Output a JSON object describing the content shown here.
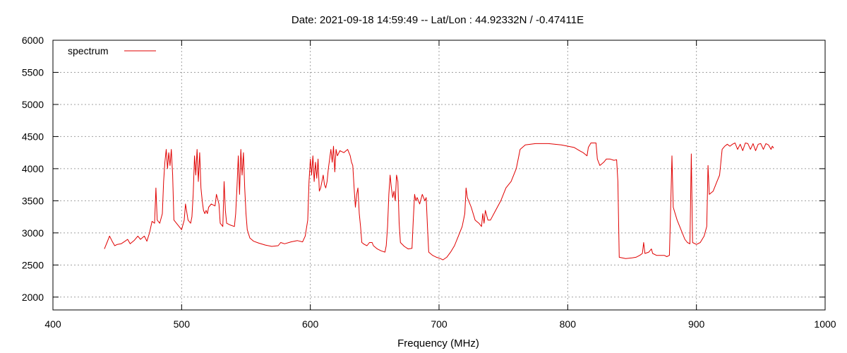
{
  "chart_data": {
    "type": "line",
    "title": "Date: 2021-09-18 14:59:49  --  Lat/Lon : 44.92332N / -0.47411E",
    "xlabel": "Frequency (MHz)",
    "ylabel": "",
    "xlim": [
      400,
      1000
    ],
    "ylim": [
      1800,
      6000
    ],
    "xticks": [
      400,
      500,
      600,
      700,
      800,
      900,
      1000
    ],
    "yticks": [
      2000,
      2500,
      3000,
      3500,
      4000,
      4500,
      5000,
      5500,
      6000
    ],
    "grid": true,
    "legend_position": "top-left",
    "series": [
      {
        "name": "spectrum",
        "color": "#e00000",
        "points": [
          [
            440,
            2750
          ],
          [
            442,
            2850
          ],
          [
            444,
            2950
          ],
          [
            446,
            2870
          ],
          [
            448,
            2800
          ],
          [
            450,
            2820
          ],
          [
            453,
            2830
          ],
          [
            456,
            2870
          ],
          [
            458,
            2900
          ],
          [
            460,
            2830
          ],
          [
            463,
            2880
          ],
          [
            466,
            2950
          ],
          [
            468,
            2900
          ],
          [
            471,
            2950
          ],
          [
            473,
            2870
          ],
          [
            475,
            3000
          ],
          [
            477,
            3180
          ],
          [
            479,
            3150
          ],
          [
            480,
            3700
          ],
          [
            481,
            3200
          ],
          [
            483,
            3150
          ],
          [
            485,
            3300
          ],
          [
            486,
            3800
          ],
          [
            487,
            4100
          ],
          [
            488,
            4300
          ],
          [
            489,
            4000
          ],
          [
            490,
            4250
          ],
          [
            491,
            4050
          ],
          [
            492,
            4300
          ],
          [
            493,
            3900
          ],
          [
            494,
            3200
          ],
          [
            496,
            3150
          ],
          [
            498,
            3100
          ],
          [
            500,
            3050
          ],
          [
            502,
            3200
          ],
          [
            503,
            3450
          ],
          [
            505,
            3200
          ],
          [
            507,
            3150
          ],
          [
            508,
            3250
          ],
          [
            509,
            3600
          ],
          [
            510,
            4200
          ],
          [
            511,
            3900
          ],
          [
            512,
            4300
          ],
          [
            513,
            3800
          ],
          [
            514,
            4250
          ],
          [
            515,
            3700
          ],
          [
            516,
            3500
          ],
          [
            517,
            3350
          ],
          [
            518,
            3300
          ],
          [
            519,
            3350
          ],
          [
            520,
            3300
          ],
          [
            521,
            3400
          ],
          [
            523,
            3450
          ],
          [
            526,
            3420
          ],
          [
            527,
            3600
          ],
          [
            529,
            3450
          ],
          [
            530,
            3150
          ],
          [
            532,
            3100
          ],
          [
            533,
            3800
          ],
          [
            534,
            3350
          ],
          [
            535,
            3150
          ],
          [
            538,
            3120
          ],
          [
            541,
            3100
          ],
          [
            542,
            3300
          ],
          [
            543,
            3700
          ],
          [
            544,
            4200
          ],
          [
            545,
            3600
          ],
          [
            546,
            4300
          ],
          [
            547,
            3900
          ],
          [
            548,
            4250
          ],
          [
            549,
            3700
          ],
          [
            550,
            3300
          ],
          [
            551,
            3050
          ],
          [
            553,
            2920
          ],
          [
            556,
            2870
          ],
          [
            560,
            2840
          ],
          [
            565,
            2810
          ],
          [
            570,
            2790
          ],
          [
            575,
            2800
          ],
          [
            577,
            2850
          ],
          [
            580,
            2830
          ],
          [
            585,
            2860
          ],
          [
            590,
            2880
          ],
          [
            594,
            2860
          ],
          [
            596,
            2950
          ],
          [
            598,
            3200
          ],
          [
            599,
            3800
          ],
          [
            600,
            4150
          ],
          [
            601,
            3900
          ],
          [
            602,
            4200
          ],
          [
            603,
            3800
          ],
          [
            604,
            4100
          ],
          [
            605,
            3850
          ],
          [
            606,
            4150
          ],
          [
            607,
            3650
          ],
          [
            608,
            3700
          ],
          [
            610,
            3900
          ],
          [
            611,
            3750
          ],
          [
            612,
            3700
          ],
          [
            613,
            3800
          ],
          [
            614,
            4000
          ],
          [
            615,
            4150
          ],
          [
            616,
            4300
          ],
          [
            617,
            4100
          ],
          [
            618,
            4350
          ],
          [
            619,
            3950
          ],
          [
            620,
            4300
          ],
          [
            621,
            4200
          ],
          [
            623,
            4280
          ],
          [
            626,
            4250
          ],
          [
            629,
            4300
          ],
          [
            631,
            4200
          ],
          [
            632,
            4100
          ],
          [
            633,
            4050
          ],
          [
            634,
            3700
          ],
          [
            635,
            3400
          ],
          [
            636,
            3600
          ],
          [
            637,
            3700
          ],
          [
            638,
            3300
          ],
          [
            639,
            3100
          ],
          [
            640,
            2850
          ],
          [
            642,
            2820
          ],
          [
            644,
            2800
          ],
          [
            646,
            2850
          ],
          [
            648,
            2850
          ],
          [
            649,
            2800
          ],
          [
            652,
            2750
          ],
          [
            655,
            2720
          ],
          [
            658,
            2700
          ],
          [
            659,
            2800
          ],
          [
            660,
            3100
          ],
          [
            661,
            3600
          ],
          [
            662,
            3900
          ],
          [
            663,
            3700
          ],
          [
            664,
            3550
          ],
          [
            665,
            3650
          ],
          [
            666,
            3500
          ],
          [
            667,
            3900
          ],
          [
            668,
            3800
          ],
          [
            669,
            3150
          ],
          [
            670,
            2850
          ],
          [
            673,
            2790
          ],
          [
            676,
            2750
          ],
          [
            679,
            2760
          ],
          [
            680,
            3200
          ],
          [
            681,
            3600
          ],
          [
            682,
            3500
          ],
          [
            683,
            3550
          ],
          [
            685,
            3450
          ],
          [
            687,
            3600
          ],
          [
            689,
            3500
          ],
          [
            690,
            3550
          ],
          [
            691,
            3100
          ],
          [
            692,
            2700
          ],
          [
            695,
            2650
          ],
          [
            698,
            2620
          ],
          [
            701,
            2600
          ],
          [
            703,
            2580
          ],
          [
            706,
            2620
          ],
          [
            709,
            2700
          ],
          [
            712,
            2800
          ],
          [
            715,
            2950
          ],
          [
            718,
            3100
          ],
          [
            720,
            3300
          ],
          [
            721,
            3700
          ],
          [
            722,
            3550
          ],
          [
            725,
            3400
          ],
          [
            728,
            3200
          ],
          [
            731,
            3150
          ],
          [
            733,
            3100
          ],
          [
            734,
            3300
          ],
          [
            735,
            3150
          ],
          [
            736,
            3350
          ],
          [
            738,
            3200
          ],
          [
            740,
            3200
          ],
          [
            744,
            3350
          ],
          [
            748,
            3500
          ],
          [
            752,
            3700
          ],
          [
            756,
            3800
          ],
          [
            760,
            4000
          ],
          [
            763,
            4300
          ],
          [
            767,
            4370
          ],
          [
            775,
            4390
          ],
          [
            785,
            4390
          ],
          [
            795,
            4370
          ],
          [
            805,
            4330
          ],
          [
            810,
            4270
          ],
          [
            812,
            4250
          ],
          [
            815,
            4200
          ],
          [
            816,
            4330
          ],
          [
            818,
            4400
          ],
          [
            822,
            4400
          ],
          [
            823,
            4150
          ],
          [
            825,
            4050
          ],
          [
            828,
            4100
          ],
          [
            830,
            4150
          ],
          [
            833,
            4150
          ],
          [
            836,
            4130
          ],
          [
            838,
            4140
          ],
          [
            839,
            3800
          ],
          [
            840,
            2620
          ],
          [
            845,
            2600
          ],
          [
            850,
            2610
          ],
          [
            853,
            2620
          ],
          [
            856,
            2650
          ],
          [
            858,
            2680
          ],
          [
            859,
            2850
          ],
          [
            860,
            2680
          ],
          [
            863,
            2700
          ],
          [
            865,
            2750
          ],
          [
            866,
            2680
          ],
          [
            869,
            2650
          ],
          [
            872,
            2650
          ],
          [
            875,
            2650
          ],
          [
            877,
            2630
          ],
          [
            879,
            2650
          ],
          [
            880,
            3400
          ],
          [
            881,
            4200
          ],
          [
            882,
            3400
          ],
          [
            885,
            3200
          ],
          [
            888,
            3050
          ],
          [
            891,
            2900
          ],
          [
            893,
            2850
          ],
          [
            895,
            2830
          ],
          [
            896,
            4230
          ],
          [
            897,
            2850
          ],
          [
            900,
            2820
          ],
          [
            903,
            2850
          ],
          [
            906,
            2950
          ],
          [
            908,
            3100
          ],
          [
            909,
            4050
          ],
          [
            910,
            3600
          ],
          [
            913,
            3650
          ],
          [
            916,
            3800
          ],
          [
            918,
            3900
          ],
          [
            919,
            4100
          ],
          [
            920,
            4300
          ],
          [
            922,
            4350
          ],
          [
            924,
            4380
          ],
          [
            926,
            4350
          ],
          [
            928,
            4380
          ],
          [
            930,
            4400
          ],
          [
            932,
            4300
          ],
          [
            934,
            4380
          ],
          [
            936,
            4280
          ],
          [
            938,
            4400
          ],
          [
            940,
            4390
          ],
          [
            942,
            4300
          ],
          [
            944,
            4390
          ],
          [
            946,
            4280
          ],
          [
            948,
            4380
          ],
          [
            950,
            4390
          ],
          [
            952,
            4300
          ],
          [
            954,
            4390
          ],
          [
            956,
            4370
          ],
          [
            958,
            4300
          ],
          [
            959,
            4350
          ],
          [
            960,
            4320
          ]
        ]
      }
    ]
  }
}
